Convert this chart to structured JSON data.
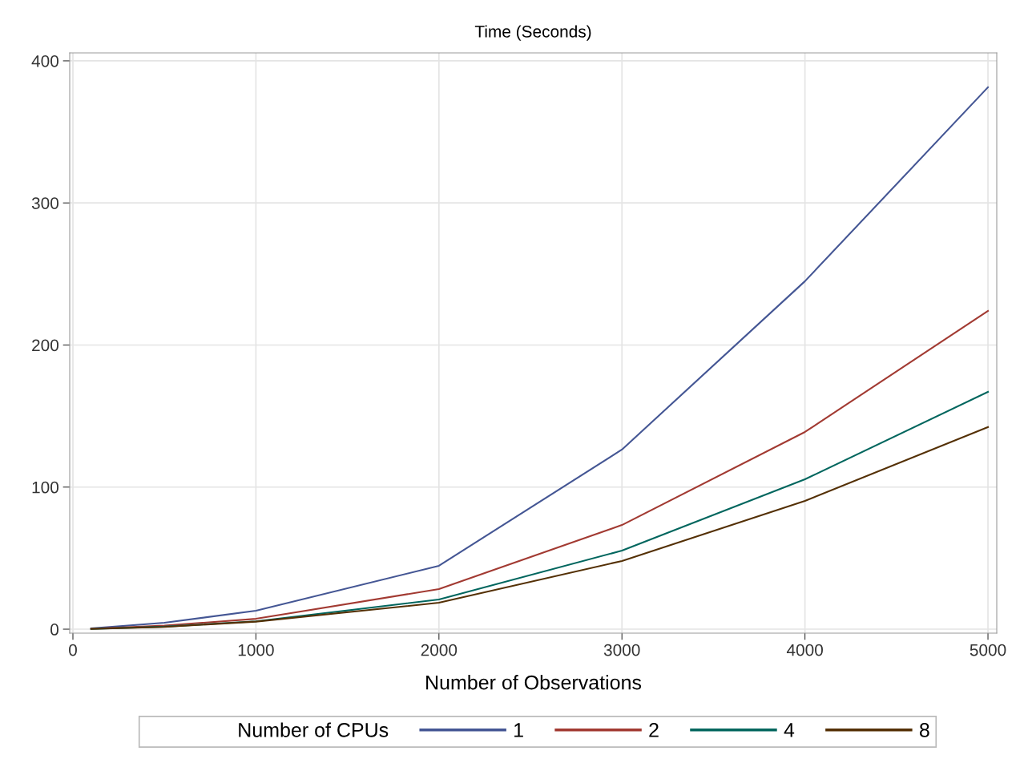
{
  "chart_data": {
    "type": "line",
    "ylabel": "Time (Seconds)",
    "xlabel": "Number of Observations",
    "legend_title": "Number of CPUs",
    "x": [
      100,
      500,
      1000,
      2000,
      3000,
      4000,
      5000
    ],
    "series": [
      {
        "name": "1",
        "color": "#445694",
        "values": [
          0.5,
          4.5,
          13,
          44.6,
          126.4,
          244.9,
          381.4
        ]
      },
      {
        "name": "2",
        "color": "#a23a32",
        "values": [
          0.3,
          2.5,
          7.3,
          28.2,
          73.3,
          138.8,
          224
        ]
      },
      {
        "name": "4",
        "color": "#01665e",
        "values": [
          0.2,
          1.8,
          5.5,
          20.9,
          55.3,
          105.5,
          167
        ]
      },
      {
        "name": "8",
        "color": "#543005",
        "values": [
          0.2,
          1.6,
          5.3,
          18.6,
          48,
          90.3,
          142.2
        ]
      }
    ],
    "xlim": [
      -17.5,
      5048
    ],
    "ylim": [
      -2.8,
      405.6
    ],
    "xticks": [
      0,
      1000,
      2000,
      3000,
      4000,
      5000
    ],
    "yticks": [
      0,
      100,
      200,
      300,
      400
    ],
    "grid": true,
    "legend": "bottom",
    "marker": "none",
    "line_style": "solid"
  }
}
